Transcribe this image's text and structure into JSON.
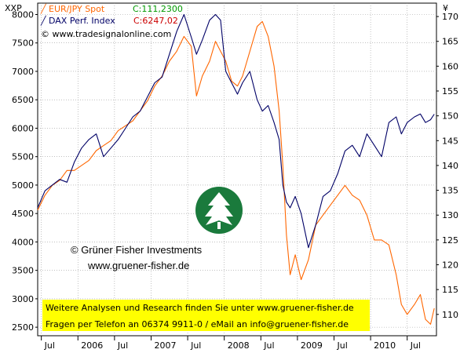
{
  "chart_data": {
    "type": "line",
    "left_axis_label": "XXP",
    "right_axis_label": "¥",
    "left_ylim": [
      2350,
      8200
    ],
    "right_ylim": [
      105.7,
      172.7
    ],
    "left_ticks": [
      2500,
      3000,
      3500,
      4000,
      4500,
      5000,
      5500,
      6000,
      6500,
      7000,
      7500,
      8000
    ],
    "right_ticks": [
      110,
      115,
      120,
      125,
      130,
      135,
      140,
      145,
      150,
      155,
      160,
      165,
      170
    ],
    "x_range": [
      2005.45,
      2010.9
    ],
    "x_ticks": [
      {
        "label": "Jul",
        "x": 2005.5
      },
      {
        "label": "2006",
        "x": 2006.0
      },
      {
        "label": "Jul",
        "x": 2006.5
      },
      {
        "label": "2007",
        "x": 2007.0
      },
      {
        "label": "Jul",
        "x": 2007.5
      },
      {
        "label": "2008",
        "x": 2008.0
      },
      {
        "label": "Jul",
        "x": 2008.5
      },
      {
        "label": "2009",
        "x": 2009.0
      },
      {
        "label": "Jul",
        "x": 2009.5
      },
      {
        "label": "2010",
        "x": 2010.0
      },
      {
        "label": "Jul",
        "x": 2010.5
      }
    ],
    "grid": true,
    "series": [
      {
        "name": "EUR/JPY Spot",
        "axis": "right",
        "color": "#ff6600",
        "last_label": "C:111,2300",
        "last_color": "#009900",
        "points": [
          [
            2005.45,
            131
          ],
          [
            2005.55,
            134
          ],
          [
            2005.65,
            136
          ],
          [
            2005.75,
            137
          ],
          [
            2005.85,
            139
          ],
          [
            2005.95,
            139
          ],
          [
            2006.05,
            140
          ],
          [
            2006.15,
            141
          ],
          [
            2006.25,
            143
          ],
          [
            2006.35,
            144
          ],
          [
            2006.45,
            145
          ],
          [
            2006.55,
            147
          ],
          [
            2006.65,
            148
          ],
          [
            2006.75,
            149
          ],
          [
            2006.85,
            151
          ],
          [
            2006.95,
            153
          ],
          [
            2007.05,
            156
          ],
          [
            2007.15,
            158
          ],
          [
            2007.25,
            161
          ],
          [
            2007.35,
            163
          ],
          [
            2007.45,
            166
          ],
          [
            2007.55,
            164
          ],
          [
            2007.62,
            154
          ],
          [
            2007.7,
            158
          ],
          [
            2007.8,
            161
          ],
          [
            2007.88,
            165
          ],
          [
            2007.95,
            163
          ],
          [
            2008.02,
            161
          ],
          [
            2008.1,
            157
          ],
          [
            2008.18,
            156
          ],
          [
            2008.25,
            158
          ],
          [
            2008.35,
            163
          ],
          [
            2008.45,
            168
          ],
          [
            2008.52,
            169
          ],
          [
            2008.6,
            166
          ],
          [
            2008.68,
            160
          ],
          [
            2008.75,
            151
          ],
          [
            2008.8,
            140
          ],
          [
            2008.85,
            126
          ],
          [
            2008.9,
            118
          ],
          [
            2008.97,
            122
          ],
          [
            2009.05,
            117
          ],
          [
            2009.15,
            121
          ],
          [
            2009.25,
            128
          ],
          [
            2009.35,
            130
          ],
          [
            2009.45,
            132
          ],
          [
            2009.55,
            134
          ],
          [
            2009.65,
            136
          ],
          [
            2009.75,
            134
          ],
          [
            2009.85,
            133
          ],
          [
            2009.95,
            130
          ],
          [
            2010.05,
            125
          ],
          [
            2010.15,
            125
          ],
          [
            2010.25,
            124
          ],
          [
            2010.35,
            118
          ],
          [
            2010.42,
            112
          ],
          [
            2010.5,
            110
          ],
          [
            2010.6,
            112
          ],
          [
            2010.68,
            114
          ],
          [
            2010.75,
            109
          ],
          [
            2010.82,
            108
          ],
          [
            2010.87,
            111.23
          ]
        ]
      },
      {
        "name": "DAX Perf. Index",
        "axis": "left",
        "color": "#000066",
        "last_label": "C:6247,02",
        "last_color": "#cc0000",
        "points": [
          [
            2005.45,
            4600
          ],
          [
            2005.55,
            4900
          ],
          [
            2005.65,
            5000
          ],
          [
            2005.75,
            5100
          ],
          [
            2005.85,
            5050
          ],
          [
            2005.95,
            5400
          ],
          [
            2006.05,
            5650
          ],
          [
            2006.15,
            5800
          ],
          [
            2006.25,
            5900
          ],
          [
            2006.35,
            5500
          ],
          [
            2006.45,
            5650
          ],
          [
            2006.55,
            5800
          ],
          [
            2006.65,
            6000
          ],
          [
            2006.75,
            6200
          ],
          [
            2006.85,
            6300
          ],
          [
            2006.95,
            6550
          ],
          [
            2007.05,
            6800
          ],
          [
            2007.15,
            6900
          ],
          [
            2007.25,
            7300
          ],
          [
            2007.35,
            7700
          ],
          [
            2007.45,
            8000
          ],
          [
            2007.55,
            7600
          ],
          [
            2007.62,
            7300
          ],
          [
            2007.7,
            7550
          ],
          [
            2007.8,
            7900
          ],
          [
            2007.88,
            8000
          ],
          [
            2007.95,
            7900
          ],
          [
            2008.02,
            7000
          ],
          [
            2008.1,
            6800
          ],
          [
            2008.18,
            6600
          ],
          [
            2008.25,
            6800
          ],
          [
            2008.35,
            7000
          ],
          [
            2008.45,
            6500
          ],
          [
            2008.52,
            6300
          ],
          [
            2008.6,
            6400
          ],
          [
            2008.68,
            6100
          ],
          [
            2008.75,
            5800
          ],
          [
            2008.8,
            5000
          ],
          [
            2008.85,
            4700
          ],
          [
            2008.9,
            4600
          ],
          [
            2008.97,
            4800
          ],
          [
            2009.05,
            4500
          ],
          [
            2009.15,
            3900
          ],
          [
            2009.25,
            4300
          ],
          [
            2009.35,
            4800
          ],
          [
            2009.45,
            4900
          ],
          [
            2009.55,
            5200
          ],
          [
            2009.65,
            5600
          ],
          [
            2009.75,
            5700
          ],
          [
            2009.85,
            5500
          ],
          [
            2009.95,
            5900
          ],
          [
            2010.05,
            5700
          ],
          [
            2010.15,
            5500
          ],
          [
            2010.25,
            6100
          ],
          [
            2010.35,
            6200
          ],
          [
            2010.42,
            5900
          ],
          [
            2010.5,
            6100
          ],
          [
            2010.6,
            6200
          ],
          [
            2010.68,
            6250
          ],
          [
            2010.75,
            6100
          ],
          [
            2010.82,
            6150
          ],
          [
            2010.87,
            6247.02
          ]
        ]
      }
    ],
    "annotations": {
      "copyright_source": "© www.tradesignalonline.com",
      "company_name": "© Grüner Fisher Investments",
      "company_url": "www.gruener-fisher.de"
    }
  },
  "banner": {
    "line1": "Weitere Analysen und Research finden Sie unter www.gruener-fisher.de",
    "line2": "Fragen per Telefon an 06374 9911-0 / eMail an info@gruener-fisher.de",
    "background": "#ffff00"
  },
  "logo": {
    "icon": "tree-logo-icon",
    "color": "#1a7a3c"
  }
}
